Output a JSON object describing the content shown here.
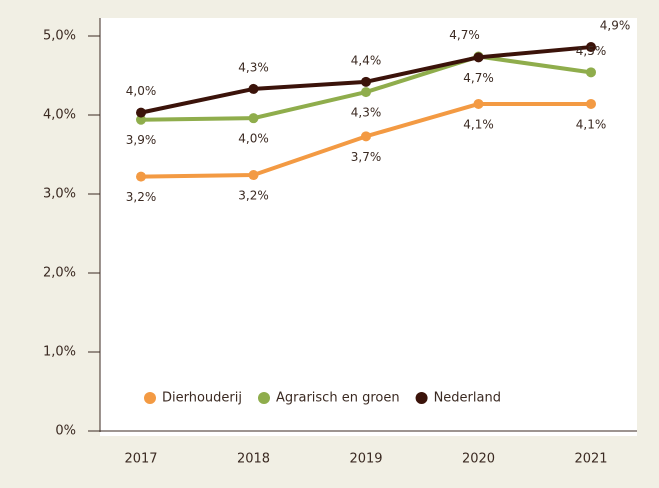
{
  "chart_data": {
    "type": "line",
    "categories": [
      "2017",
      "2018",
      "2019",
      "2020",
      "2021"
    ],
    "series": [
      {
        "name": "Dierhouderij",
        "color": "#f39a43",
        "values": [
          3.22,
          3.24,
          3.73,
          4.14,
          4.14
        ],
        "value_labels": [
          "3,2%",
          "3,2%",
          "3,7%",
          "4,1%",
          "4,1%"
        ]
      },
      {
        "name": "Agrarisch en groen",
        "color": "#8fad4c",
        "values": [
          3.94,
          3.96,
          4.29,
          4.74,
          4.54
        ],
        "value_labels": [
          "3,9%",
          "4,0%",
          "4,3%",
          "4,7%",
          "4,5%"
        ]
      },
      {
        "name": "Nederland",
        "color": "#3b130a",
        "values": [
          4.03,
          4.33,
          4.42,
          4.73,
          4.86
        ],
        "value_labels": [
          "4,0%",
          "4,3%",
          "4,4%",
          "4,7%",
          "4,9%"
        ]
      }
    ],
    "ylim": [
      0,
      5
    ],
    "yticks": [
      {
        "value": 0,
        "label": "0%"
      },
      {
        "value": 1,
        "label": "1,0%"
      },
      {
        "value": 2,
        "label": "2,0%"
      },
      {
        "value": 3,
        "label": "3,0%"
      },
      {
        "value": 4,
        "label": "4,0%"
      },
      {
        "value": 5,
        "label": "5,0%"
      }
    ],
    "legend": "bottom"
  }
}
